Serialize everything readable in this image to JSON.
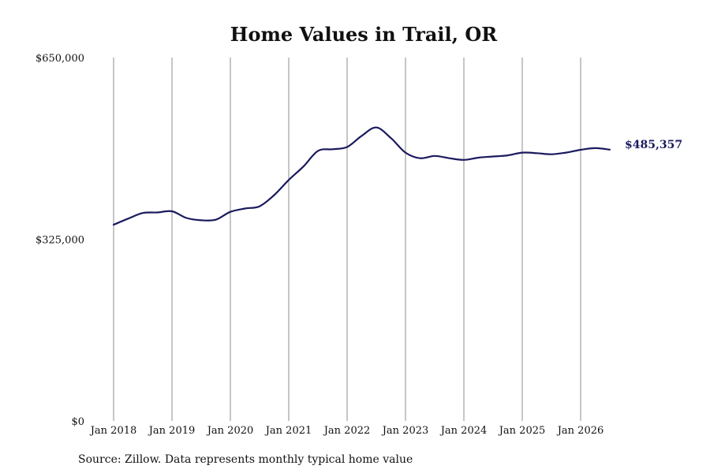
{
  "chart_data": {
    "type": "line",
    "title": "Home Values in Trail, OR",
    "xlabel": "",
    "ylabel": "",
    "ylim": [
      0,
      650000
    ],
    "y_ticks": [
      {
        "value": 0,
        "label": "$0"
      },
      {
        "value": 325000,
        "label": "$325,000"
      },
      {
        "value": 650000,
        "label": "$650,000"
      }
    ],
    "x_ticks": [
      {
        "value": "2018-01",
        "label": "Jan 2018"
      },
      {
        "value": "2019-01",
        "label": "Jan 2019"
      },
      {
        "value": "2020-01",
        "label": "Jan 2020"
      },
      {
        "value": "2021-01",
        "label": "Jan 2021"
      },
      {
        "value": "2022-01",
        "label": "Jan 2022"
      },
      {
        "value": "2023-01",
        "label": "Jan 2023"
      },
      {
        "value": "2024-01",
        "label": "Jan 2024"
      },
      {
        "value": "2025-01",
        "label": "Jan 2025"
      },
      {
        "value": "2026-01",
        "label": "Jan 2026"
      }
    ],
    "grid": "vertical",
    "line_color": "#1a1a5e",
    "series": [
      {
        "x": [
          "2018-01",
          "2018-04",
          "2018-07",
          "2018-10",
          "2019-01",
          "2019-04",
          "2019-07",
          "2019-10",
          "2020-01",
          "2020-04",
          "2020-07",
          "2020-10",
          "2021-01",
          "2021-04",
          "2021-07",
          "2021-10",
          "2022-01",
          "2022-04",
          "2022-07",
          "2022-10",
          "2023-01",
          "2023-04",
          "2023-07",
          "2023-10",
          "2024-01",
          "2024-04",
          "2024-07",
          "2024-10",
          "2025-01",
          "2025-04",
          "2025-07",
          "2025-10",
          "2026-01",
          "2026-04",
          "2026-07"
        ],
        "values": [
          351000,
          362000,
          372000,
          373000,
          375000,
          363000,
          359000,
          360000,
          374000,
          380000,
          384000,
          404000,
          431000,
          455000,
          483000,
          486000,
          490000,
          510000,
          525000,
          506000,
          480000,
          470000,
          474000,
          470000,
          467000,
          471000,
          473000,
          475000,
          480000,
          479000,
          477000,
          480000,
          485000,
          488000,
          485357
        ]
      }
    ],
    "end_label": "$485,357",
    "source": "Source: Zillow. Data represents monthly typical home value"
  }
}
